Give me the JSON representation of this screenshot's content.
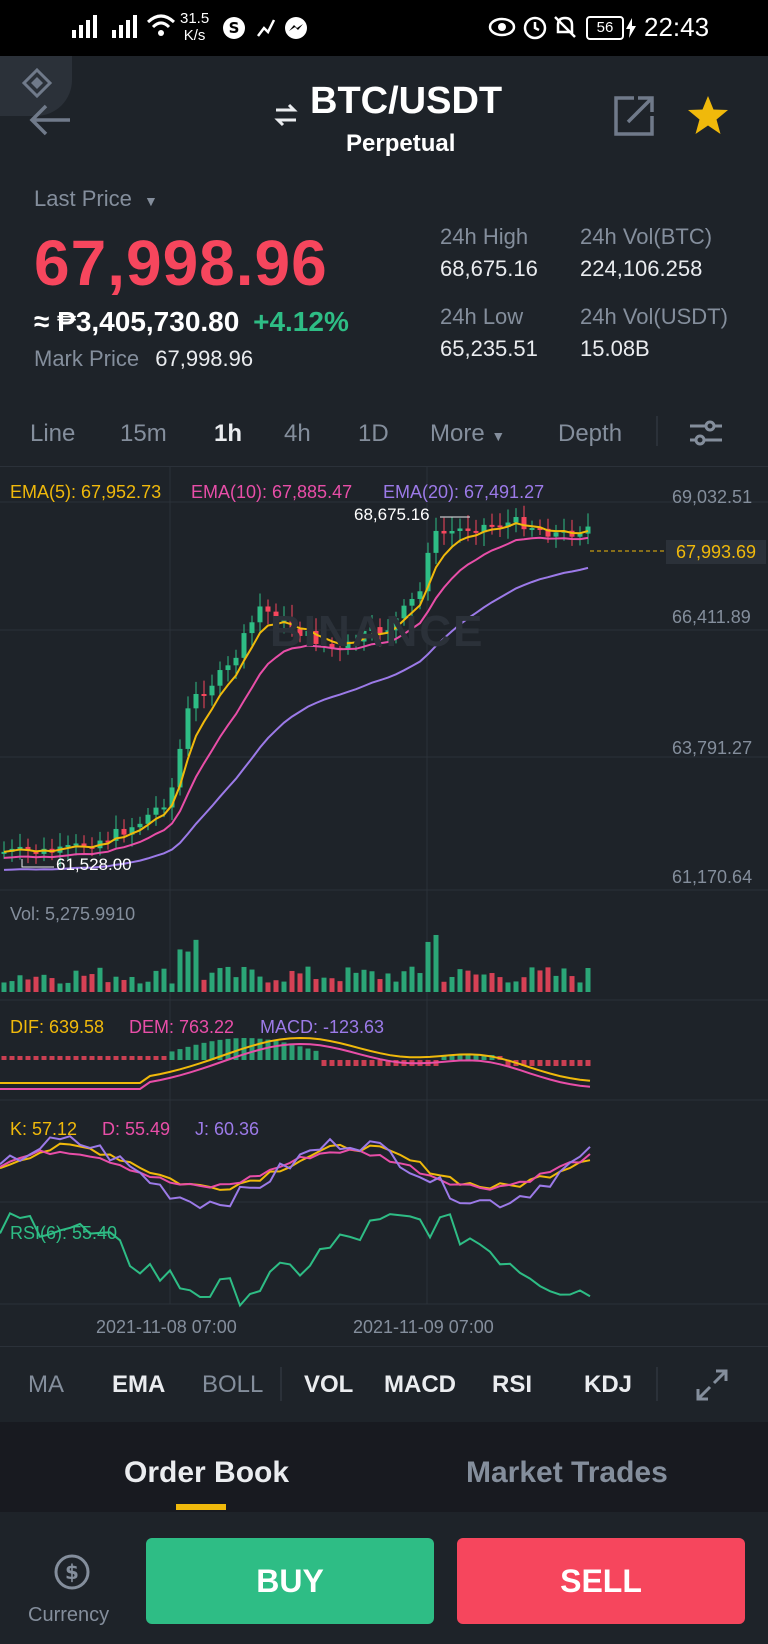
{
  "status_bar": {
    "speed": "31.5",
    "speed_unit": "K/s",
    "battery": "56",
    "time": "22:43"
  },
  "header": {
    "pair": "BTC/USDT",
    "contract": "Perpetual"
  },
  "price": {
    "last_label": "Last Price",
    "last": "67,998.96",
    "fiat": "≈ ₱3,405,730.80",
    "change": "+4.12%",
    "mark_label": "Mark Price",
    "mark": "67,998.96",
    "high_label": "24h High",
    "high": "68,675.16",
    "low_label": "24h Low",
    "low": "65,235.51",
    "vol_btc_label": "24h Vol(BTC)",
    "vol_btc": "224,106.258",
    "vol_usdt_label": "24h Vol(USDT)",
    "vol_usdt": "15.08B"
  },
  "timeframes": [
    {
      "label": "Line"
    },
    {
      "label": "15m"
    },
    {
      "label": "1h"
    },
    {
      "label": "4h"
    },
    {
      "label": "1D"
    },
    {
      "label": "More"
    },
    {
      "label": "Depth"
    }
  ],
  "active_timeframe": "1h",
  "chart": {
    "ema5": "EMA(5): 67,952.73",
    "ema10": "EMA(10): 67,885.47",
    "ema20": "EMA(20): 67,491.27",
    "axis": [
      "69,032.51",
      "66,411.89",
      "63,791.27",
      "61,170.64"
    ],
    "current_price": "67,993.69",
    "high_marker": "68,675.16",
    "low_marker": "61,528.00",
    "vol": "Vol: 5,275.9910",
    "dif": "DIF: 639.58",
    "dem": "DEM: 763.22",
    "macd": "MACD: -123.63",
    "k": "K: 57.12",
    "d": "D: 55.49",
    "j": "J: 60.36",
    "rsi": "RSI(6): 55.40",
    "dates": [
      "2021-11-08 07:00",
      "2021-11-09 07:00"
    ],
    "watermark": "BINANCE"
  },
  "colors": {
    "up": "#2ebd85",
    "down": "#f6465d",
    "ema5": "#f0b90b",
    "ema10": "#e84ea8",
    "ema20": "#9c7ae8",
    "bg": "#1e2329"
  },
  "indicators": [
    {
      "label": "MA"
    },
    {
      "label": "EMA"
    },
    {
      "label": "BOLL"
    },
    {
      "label": "VOL"
    },
    {
      "label": "MACD"
    },
    {
      "label": "RSI"
    },
    {
      "label": "KDJ"
    }
  ],
  "tabs": {
    "order_book": "Order Book",
    "market_trades": "Market Trades"
  },
  "bottom": {
    "currency": "Currency",
    "buy": "BUY",
    "sell": "SELL"
  }
}
